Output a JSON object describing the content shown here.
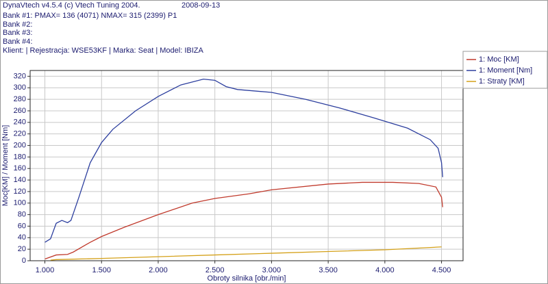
{
  "header": {
    "title": "DynaVtech v4.5.4 (c) Vtech Tuning 2004.",
    "date": "2008-09-13",
    "lines": [
      "Bank #1: PMAX= 136 (4071)    NMAX= 315 (2399)    P1",
      "Bank #2:",
      "Bank #3:",
      "Bank #4:",
      "Klient:   | Rejestracja: WSE53KF   | Marka: Seat   | Model: IBIZA"
    ]
  },
  "chart_data": {
    "type": "line",
    "x_label": "Obroty silnika [obr./min]",
    "y_label": "Moc[KM] / Moment [Nm]",
    "xlim": [
      870,
      4690
    ],
    "ylim": [
      0,
      330
    ],
    "xticks": [
      {
        "value": 1000,
        "label": "1.000"
      },
      {
        "value": 1500,
        "label": "1.500"
      },
      {
        "value": 2000,
        "label": "2.000"
      },
      {
        "value": 2500,
        "label": "2.500"
      },
      {
        "value": 3000,
        "label": "3.000"
      },
      {
        "value": 3500,
        "label": "3.500"
      },
      {
        "value": 4000,
        "label": "4.000"
      },
      {
        "value": 4500,
        "label": "4.500"
      }
    ],
    "yticks": [
      0,
      20,
      40,
      60,
      80,
      100,
      120,
      140,
      160,
      180,
      200,
      220,
      240,
      260,
      280,
      300,
      320
    ],
    "grid": true,
    "legend": "right",
    "series": [
      {
        "name": "1: Moc [KM]",
        "color": "#c0392b",
        "x": [
          1000,
          1100,
          1200,
          1250,
          1400,
          1500,
          1700,
          2000,
          2300,
          2500,
          2800,
          3000,
          3500,
          3800,
          4071,
          4300,
          4450,
          4500,
          4510
        ],
        "values": [
          3,
          10,
          11,
          15,
          32,
          42,
          58,
          80,
          100,
          108,
          116,
          123,
          133,
          136,
          136,
          134,
          128,
          110,
          93
        ]
      },
      {
        "name": "1: Moment [Nm]",
        "color": "#2c3e9e",
        "x": [
          1000,
          1050,
          1100,
          1150,
          1200,
          1230,
          1300,
          1400,
          1500,
          1600,
          1800,
          2000,
          2200,
          2399,
          2500,
          2600,
          2700,
          3000,
          3300,
          3600,
          3900,
          4200,
          4400,
          4470,
          4500,
          4510
        ],
        "values": [
          32,
          38,
          65,
          70,
          66,
          70,
          110,
          170,
          205,
          228,
          260,
          285,
          305,
          315,
          313,
          302,
          297,
          292,
          280,
          265,
          248,
          230,
          210,
          195,
          170,
          145
        ]
      },
      {
        "name": "1: Straty [KM]",
        "color": "#d4a017",
        "x": [
          1050,
          1100,
          1500,
          2000,
          2500,
          3000,
          3500,
          4000,
          4500
        ],
        "values": [
          1,
          2,
          4,
          7,
          10,
          13,
          16,
          19,
          24
        ]
      }
    ]
  }
}
